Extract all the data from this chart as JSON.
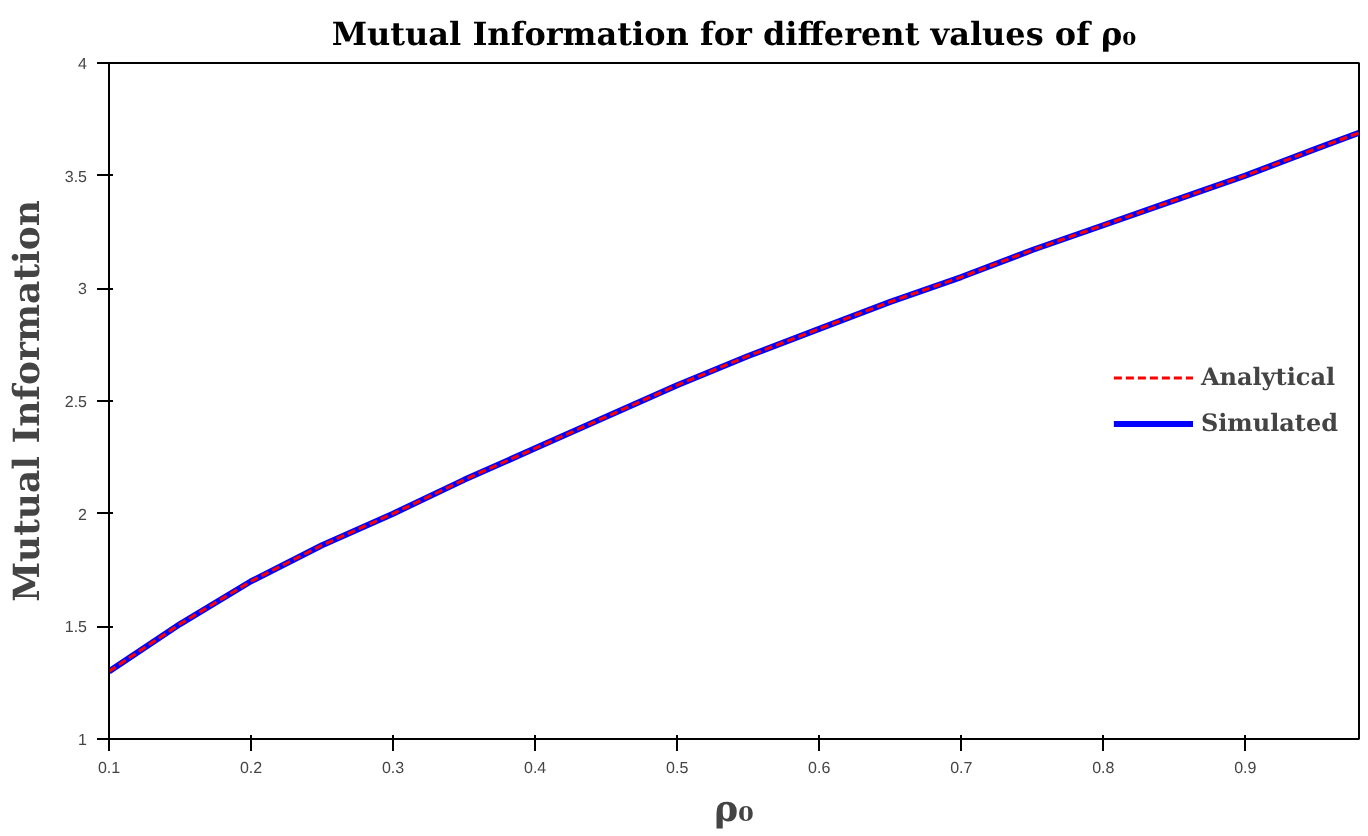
{
  "chart_data": {
    "type": "line",
    "title": "Mutual Information for different values of ρ₀",
    "xlabel": "ρ₀",
    "ylabel": "Mutual Information",
    "x": [
      0.1,
      0.15,
      0.2,
      0.25,
      0.3,
      0.35,
      0.4,
      0.45,
      0.5,
      0.55,
      0.6,
      0.65,
      0.7,
      0.75,
      0.8,
      0.85,
      0.9,
      0.95,
      0.98
    ],
    "series": [
      {
        "name": "Analytical",
        "color": "#ff0000",
        "line_style": "dashed",
        "values": [
          1.3,
          1.51,
          1.7,
          1.86,
          2.0,
          2.15,
          2.29,
          2.43,
          2.57,
          2.7,
          2.82,
          2.94,
          3.05,
          3.17,
          3.28,
          3.39,
          3.5,
          3.62,
          3.69
        ]
      },
      {
        "name": "Simulated",
        "color": "#0000ff",
        "line_style": "solid",
        "values": [
          1.3,
          1.51,
          1.7,
          1.86,
          2.0,
          2.15,
          2.29,
          2.43,
          2.57,
          2.7,
          2.82,
          2.94,
          3.05,
          3.17,
          3.28,
          3.39,
          3.5,
          3.62,
          3.69
        ]
      }
    ],
    "xlim": [
      0.1,
      0.98
    ],
    "ylim": [
      1,
      4
    ],
    "xticks": [
      0.1,
      0.2,
      0.3,
      0.4,
      0.5,
      0.6,
      0.7,
      0.8,
      0.9
    ],
    "yticks": [
      1,
      1.5,
      2,
      2.5,
      3,
      3.5,
      4
    ],
    "grid": false,
    "legend": "right",
    "marker": "none"
  }
}
